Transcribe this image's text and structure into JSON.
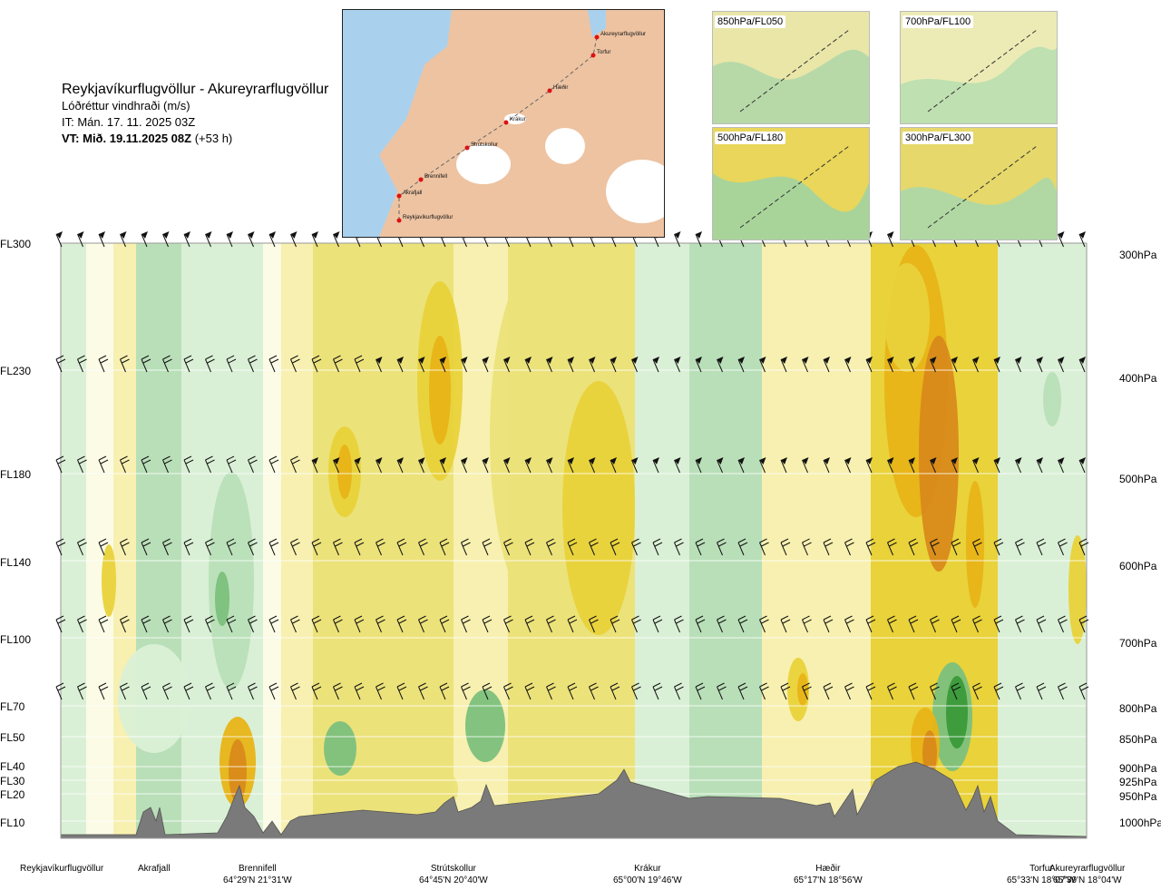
{
  "title": {
    "route": "Reykjavíkurflugvöllur - Akureyrarflugvöllur",
    "variable": "Lóðréttur vindhraði (m/s)",
    "issue_time": "IT: Mán. 17. 11. 2025 03Z",
    "valid_time": "VT: Mið. 19.11.2025 08Z",
    "lead_time": "(+53 h)"
  },
  "route_map": {
    "points": [
      "Akureyrarflugvöllur",
      "Torfur",
      "Hæðir",
      "Krákur",
      "Strútskollur",
      "Brennifell",
      "Akrafjall",
      "Reykjavíkurflugvöllur"
    ]
  },
  "level_maps": [
    {
      "label": "850hPa/FL050"
    },
    {
      "label": "700hPa/FL100"
    },
    {
      "label": "500hPa/FL180"
    },
    {
      "label": "300hPa/FL300"
    }
  ],
  "flight_levels": [
    "FL300",
    "FL230",
    "FL180",
    "FL140",
    "FL100",
    "FL70",
    "FL50",
    "FL40",
    "FL30",
    "FL20",
    "FL10"
  ],
  "pressure_levels": [
    "300hPa",
    "400hPa",
    "500hPa",
    "600hPa",
    "700hPa",
    "800hPa",
    "850hPa",
    "900hPa",
    "925hPa",
    "950hPa",
    "1000hPa"
  ],
  "stations": [
    {
      "name": "Reykjavíkurflugvöllur",
      "coord": ""
    },
    {
      "name": "Akrafjall",
      "coord": ""
    },
    {
      "name": "Brennifell",
      "coord": "64°29'N 21°31'W"
    },
    {
      "name": "Strútskollur",
      "coord": "64°45'N 20°40'W"
    },
    {
      "name": "Krákur",
      "coord": "65°00'N 19°46'W"
    },
    {
      "name": "Hæðir",
      "coord": "65°17'N 18°56'W"
    },
    {
      "name": "Torfur",
      "coord": "65°33'N 18°07'W"
    },
    {
      "name": "Akureyrarflugvöllur",
      "coord": "65°39'N 18°04'W"
    }
  ],
  "chart_data": {
    "type": "heatmap",
    "description_axes": {
      "x": "distance along route",
      "y": "pressure (hPa)"
    },
    "ylim": [
      1000,
      300
    ],
    "colors": {
      "strong_down": "#3a9a3a",
      "mod_down": "#7cc07c",
      "weak_down": "#b9dfb8",
      "faint_down": "#daf0d6",
      "neutral": "#fbfbe6",
      "faint_up": "#f7f0b0",
      "weak_up": "#ece27a",
      "mod_up": "#e9d23a",
      "strong_up": "#e8b417",
      "very_strong_up": "#d98a1a",
      "terrain": "#7a7a7a"
    }
  }
}
